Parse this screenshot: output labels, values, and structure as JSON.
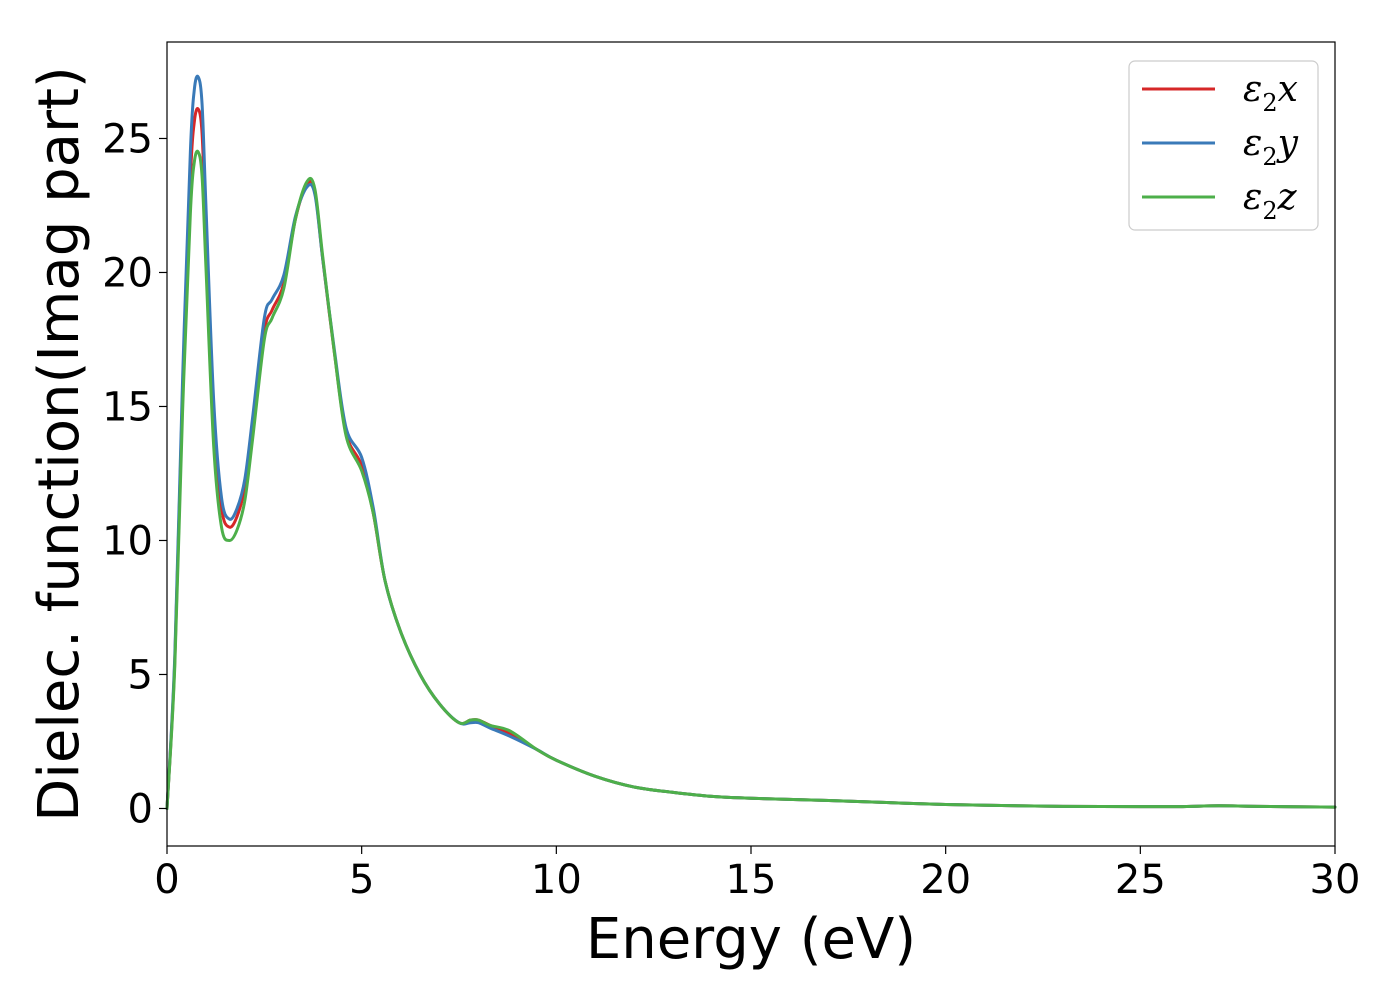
{
  "chart_data": {
    "type": "line",
    "title": "",
    "xlabel": "Energy (eV)",
    "ylabel": "Dielec. function(Imag part)",
    "xlim": [
      0,
      30
    ],
    "ylim": [
      -1.4,
      28.6
    ],
    "xticks": [
      0,
      5,
      10,
      15,
      20,
      25,
      30
    ],
    "yticks": [
      0,
      5,
      10,
      15,
      20,
      25
    ],
    "grid": false,
    "legend_position": "top-right",
    "series": [
      {
        "name": "ε2x",
        "legend_base": "ε",
        "legend_sub": "2",
        "legend_tail": "x",
        "color": "#d62728",
        "x": [
          0,
          0.2,
          0.4,
          0.6,
          0.7,
          0.8,
          0.9,
          1.0,
          1.2,
          1.4,
          1.6,
          1.8,
          2.0,
          2.2,
          2.5,
          2.7,
          3.0,
          3.3,
          3.6,
          3.8,
          4.0,
          4.3,
          4.6,
          5.0,
          5.3,
          5.6,
          6.0,
          6.5,
          7.0,
          7.5,
          7.8,
          8.0,
          8.3,
          8.8,
          9.5,
          10,
          11,
          12,
          13,
          14,
          15,
          17,
          20,
          23,
          25,
          26,
          27,
          28,
          30
        ],
        "values": [
          0,
          5.5,
          15.5,
          23.5,
          25.6,
          26.1,
          25.2,
          21.5,
          14.5,
          11.2,
          10.5,
          10.9,
          12.0,
          14.2,
          17.8,
          18.6,
          19.6,
          22.0,
          23.3,
          23.0,
          20.5,
          17.0,
          14.0,
          12.8,
          11.0,
          8.5,
          6.6,
          5.0,
          3.9,
          3.2,
          3.3,
          3.3,
          3.1,
          2.8,
          2.2,
          1.8,
          1.2,
          0.8,
          0.6,
          0.45,
          0.38,
          0.3,
          0.15,
          0.08,
          0.07,
          0.07,
          0.1,
          0.08,
          0.05
        ]
      },
      {
        "name": "ε2y",
        "legend_base": "ε",
        "legend_sub": "2",
        "legend_tail": "y",
        "color": "#3a7ab8",
        "x": [
          0,
          0.2,
          0.4,
          0.6,
          0.7,
          0.8,
          0.9,
          1.0,
          1.2,
          1.4,
          1.6,
          1.8,
          2.0,
          2.2,
          2.5,
          2.7,
          3.0,
          3.3,
          3.6,
          3.8,
          4.0,
          4.3,
          4.6,
          5.0,
          5.3,
          5.6,
          6.0,
          6.5,
          7.0,
          7.5,
          7.8,
          8.0,
          8.3,
          8.8,
          9.5,
          10,
          11,
          12,
          13,
          14,
          15,
          17,
          20,
          23,
          25,
          26,
          27,
          28,
          30
        ],
        "values": [
          0,
          5.7,
          16.0,
          24.5,
          26.8,
          27.3,
          26.3,
          22.5,
          15.2,
          11.6,
          10.8,
          11.2,
          12.3,
          14.6,
          18.3,
          19.0,
          19.9,
          22.1,
          23.2,
          22.9,
          20.5,
          17.1,
          14.2,
          13.1,
          11.2,
          8.5,
          6.6,
          5.0,
          3.9,
          3.2,
          3.2,
          3.2,
          3.0,
          2.7,
          2.2,
          1.8,
          1.2,
          0.8,
          0.6,
          0.45,
          0.38,
          0.3,
          0.15,
          0.08,
          0.07,
          0.07,
          0.1,
          0.08,
          0.05
        ]
      },
      {
        "name": "ε2z",
        "legend_base": "ε",
        "legend_sub": "2",
        "legend_tail": "z",
        "color": "#4daf4a",
        "x": [
          0,
          0.2,
          0.4,
          0.6,
          0.7,
          0.8,
          0.9,
          1.0,
          1.2,
          1.4,
          1.6,
          1.8,
          2.0,
          2.2,
          2.5,
          2.7,
          3.0,
          3.3,
          3.6,
          3.8,
          4.0,
          4.3,
          4.6,
          5.0,
          5.3,
          5.6,
          6.0,
          6.5,
          7.0,
          7.5,
          7.8,
          8.0,
          8.3,
          8.8,
          9.5,
          10,
          11,
          12,
          13,
          14,
          15,
          17,
          20,
          23,
          25,
          26,
          27,
          28,
          30
        ],
        "values": [
          0,
          5.3,
          14.8,
          22.2,
          24.1,
          24.5,
          23.6,
          20.2,
          13.5,
          10.5,
          10.0,
          10.4,
          11.5,
          13.8,
          17.5,
          18.3,
          19.4,
          22.0,
          23.4,
          23.1,
          20.6,
          17.0,
          13.9,
          12.6,
          11.0,
          8.5,
          6.6,
          5.0,
          3.9,
          3.2,
          3.3,
          3.3,
          3.1,
          2.9,
          2.2,
          1.8,
          1.2,
          0.8,
          0.6,
          0.45,
          0.38,
          0.3,
          0.15,
          0.08,
          0.07,
          0.07,
          0.1,
          0.08,
          0.05
        ]
      }
    ]
  }
}
